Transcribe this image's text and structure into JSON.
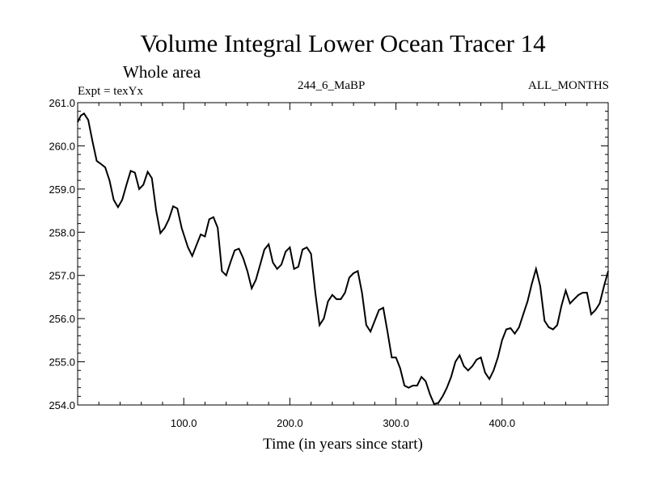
{
  "chart_data": {
    "type": "line",
    "title": "Volume Integral Lower Ocean Tracer 14",
    "subtitle": "Whole area",
    "experiment_label": "Expt = texYx",
    "center_label": "244_6_MaBP",
    "right_label": "ALL_MONTHS",
    "xlabel": "Time (in years since start)",
    "ylabel": "",
    "xlim": [
      0,
      500
    ],
    "ylim": [
      254.0,
      261.0
    ],
    "xticks": [
      100,
      200,
      300,
      400
    ],
    "xtick_labels": [
      "100.0",
      "200.0",
      "300.0",
      "400.0"
    ],
    "yticks": [
      254,
      255,
      256,
      257,
      258,
      259,
      260,
      261
    ],
    "ytick_labels": [
      "254.0",
      "255.0",
      "256.0",
      "257.0",
      "258.0",
      "259.0",
      "260.0",
      "261.0"
    ],
    "grid": false,
    "line_color": "#000000",
    "series": [
      {
        "x": [
          0,
          3,
          6,
          10,
          14,
          18,
          22,
          26,
          30,
          34,
          38,
          42,
          46,
          50,
          54,
          58,
          62,
          66,
          70,
          74,
          78,
          82,
          86,
          90,
          94,
          98,
          100,
          104,
          108,
          112,
          116,
          120,
          124,
          128,
          132,
          136,
          140,
          144,
          148,
          152,
          156,
          160,
          164,
          168,
          172,
          176,
          180,
          184,
          188,
          192,
          196,
          200,
          204,
          208,
          212,
          216,
          220,
          224,
          228,
          232,
          236,
          240,
          244,
          248,
          252,
          256,
          260,
          264,
          268,
          272,
          276,
          280,
          284,
          288,
          292,
          296,
          300,
          304,
          308,
          312,
          316,
          320,
          324,
          328,
          332,
          336,
          340,
          344,
          348,
          352,
          356,
          360,
          364,
          368,
          372,
          376,
          380,
          384,
          388,
          392,
          396,
          400,
          404,
          408,
          412,
          416,
          420,
          424,
          428,
          432,
          436,
          440,
          444,
          448,
          452,
          456,
          460,
          464,
          468,
          472,
          476,
          480,
          484,
          488,
          492,
          496,
          500
        ],
        "y": [
          260.55,
          260.7,
          260.75,
          260.6,
          260.1,
          259.65,
          259.58,
          259.5,
          259.2,
          258.75,
          258.58,
          258.75,
          259.1,
          259.42,
          259.38,
          259.0,
          259.1,
          259.4,
          259.25,
          258.5,
          257.98,
          258.1,
          258.3,
          258.6,
          258.55,
          258.1,
          257.95,
          257.65,
          257.45,
          257.7,
          257.95,
          257.9,
          258.3,
          258.35,
          258.1,
          257.1,
          257.0,
          257.3,
          257.58,
          257.62,
          257.4,
          257.1,
          256.7,
          256.9,
          257.25,
          257.6,
          257.72,
          257.3,
          257.15,
          257.25,
          257.55,
          257.65,
          257.15,
          257.2,
          257.6,
          257.65,
          257.5,
          256.6,
          255.85,
          256.0,
          256.4,
          256.55,
          256.45,
          256.45,
          256.6,
          256.95,
          257.05,
          257.1,
          256.6,
          255.85,
          255.7,
          255.95,
          256.2,
          256.25,
          255.7,
          255.1,
          255.1,
          254.85,
          254.45,
          254.4,
          254.45,
          254.45,
          254.65,
          254.55,
          254.25,
          254.02,
          254.05,
          254.2,
          254.4,
          254.65,
          255.0,
          255.15,
          254.9,
          254.8,
          254.9,
          255.05,
          255.1,
          254.75,
          254.6,
          254.8,
          255.1,
          255.5,
          255.75,
          255.78,
          255.65,
          255.8,
          256.1,
          256.4,
          256.8,
          257.15,
          256.75,
          255.95,
          255.8,
          255.75,
          255.85,
          256.3,
          256.65,
          256.35,
          256.45,
          256.55,
          256.6,
          256.6,
          256.1,
          256.2,
          256.35,
          256.75,
          257.1
        ]
      }
    ]
  }
}
